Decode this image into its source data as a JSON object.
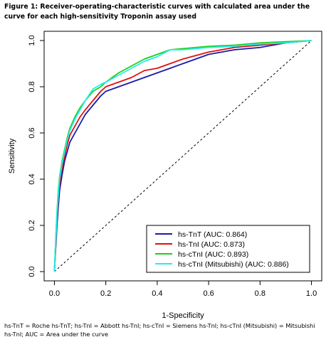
{
  "figure_title": "Figure 1: Receiver-operating-characteristic curves with calculated area under the curve for each high-sensitivity Troponin assay used",
  "caption": "hs-TnT = Roche hs-TnT; hs-TnI = Abbott hs-TnI; hs-cTnI = Siemens hs-TnI; hs-cTnI (Mitsubishi) = Mitsubishi hs-TnI; AUC = Area under the curve",
  "chart_data": {
    "type": "line",
    "title": "",
    "xlabel": "1-Specificity",
    "ylabel": "Sensitivity",
    "xlim": [
      -0.04,
      1.04
    ],
    "ylim": [
      -0.04,
      1.04
    ],
    "xticks": [
      0.0,
      0.2,
      0.4,
      0.6,
      0.8,
      1.0
    ],
    "xtick_labels": [
      "0.0",
      "0.2",
      "0.4",
      "0.6",
      "0.8",
      "1.0"
    ],
    "yticks": [
      0.0,
      0.2,
      0.4,
      0.6,
      0.8,
      1.0
    ],
    "ytick_labels": [
      "0.0",
      "0.2",
      "0.4",
      "0.6",
      "0.8",
      "1.0"
    ],
    "grid": false,
    "legend_position": "bottom-right",
    "reference_line": {
      "x": [
        0,
        1
      ],
      "y": [
        0,
        1
      ],
      "style": "dashed",
      "color": "#000000"
    },
    "series": [
      {
        "name": "hs-TnT  (AUC: 0.864)",
        "color": "#1a1aaa",
        "x": [
          0,
          0.005,
          0.01,
          0.015,
          0.02,
          0.03,
          0.04,
          0.05,
          0.06,
          0.08,
          0.1,
          0.12,
          0.15,
          0.18,
          0.2,
          0.25,
          0.3,
          0.35,
          0.4,
          0.45,
          0.5,
          0.55,
          0.6,
          0.65,
          0.7,
          0.8,
          0.85,
          0.9,
          1.0
        ],
        "y": [
          0,
          0.1,
          0.2,
          0.28,
          0.35,
          0.42,
          0.48,
          0.52,
          0.56,
          0.6,
          0.64,
          0.68,
          0.72,
          0.76,
          0.78,
          0.8,
          0.82,
          0.84,
          0.86,
          0.88,
          0.9,
          0.92,
          0.94,
          0.95,
          0.96,
          0.97,
          0.98,
          0.99,
          1.0
        ]
      },
      {
        "name": "hs-TnI  (AUC: 0.873)",
        "color": "#e01010",
        "x": [
          0,
          0.005,
          0.01,
          0.015,
          0.02,
          0.03,
          0.04,
          0.05,
          0.06,
          0.08,
          0.1,
          0.12,
          0.15,
          0.18,
          0.2,
          0.25,
          0.3,
          0.35,
          0.4,
          0.45,
          0.5,
          0.6,
          0.65,
          0.7,
          0.8,
          0.9,
          1.0
        ],
        "y": [
          0,
          0.12,
          0.24,
          0.32,
          0.38,
          0.45,
          0.5,
          0.55,
          0.59,
          0.63,
          0.67,
          0.7,
          0.74,
          0.78,
          0.8,
          0.82,
          0.84,
          0.87,
          0.88,
          0.9,
          0.92,
          0.95,
          0.96,
          0.97,
          0.98,
          0.99,
          1.0
        ]
      },
      {
        "name": "hs-cTnI  (AUC: 0.893)",
        "color": "#22cc22",
        "x": [
          0,
          0.005,
          0.01,
          0.015,
          0.02,
          0.03,
          0.04,
          0.05,
          0.06,
          0.08,
          0.1,
          0.12,
          0.15,
          0.18,
          0.2,
          0.25,
          0.3,
          0.35,
          0.4,
          0.45,
          0.5,
          0.55,
          0.6,
          0.7,
          0.8,
          0.9,
          1.0
        ],
        "y": [
          0,
          0.14,
          0.26,
          0.35,
          0.41,
          0.48,
          0.53,
          0.58,
          0.62,
          0.67,
          0.71,
          0.74,
          0.78,
          0.8,
          0.82,
          0.86,
          0.89,
          0.92,
          0.94,
          0.96,
          0.965,
          0.97,
          0.975,
          0.98,
          0.99,
          0.995,
          1.0
        ]
      },
      {
        "name": "hs-cTnI (Mitsubishi)  (AUC: 0.886)",
        "color": "#22eeee",
        "x": [
          0,
          0.005,
          0.01,
          0.015,
          0.02,
          0.03,
          0.04,
          0.05,
          0.06,
          0.08,
          0.1,
          0.12,
          0.15,
          0.18,
          0.2,
          0.25,
          0.3,
          0.35,
          0.4,
          0.45,
          0.5,
          0.55,
          0.6,
          0.7,
          0.8,
          0.9,
          1.0
        ],
        "y": [
          0,
          0.13,
          0.25,
          0.33,
          0.4,
          0.47,
          0.52,
          0.57,
          0.61,
          0.66,
          0.7,
          0.74,
          0.79,
          0.81,
          0.82,
          0.85,
          0.88,
          0.91,
          0.93,
          0.96,
          0.96,
          0.965,
          0.97,
          0.975,
          0.985,
          0.99,
          1.0
        ]
      }
    ]
  }
}
